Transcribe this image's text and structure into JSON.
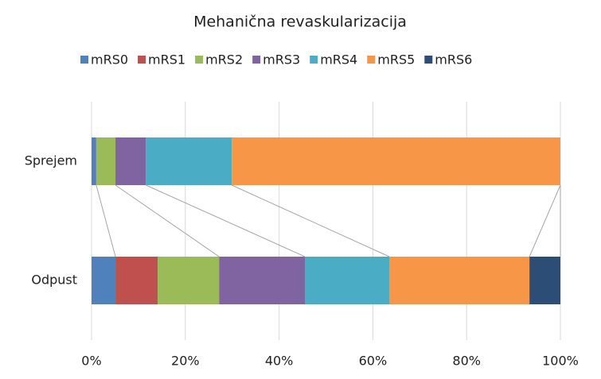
{
  "chart_data": {
    "type": "stacked_barh",
    "title": "Mehanična revaskularizacija",
    "categories": [
      "Sprejem",
      "Odpust"
    ],
    "series": [
      {
        "name": "mRS0",
        "color": "#4f81bd",
        "values": [
          1.0,
          5.1
        ]
      },
      {
        "name": "mRS1",
        "color": "#c0504d",
        "values": [
          0,
          9.0
        ]
      },
      {
        "name": "mRS2",
        "color": "#9bbb59",
        "values": [
          4.1,
          13.1
        ]
      },
      {
        "name": "mRS3",
        "color": "#8064a2",
        "values": [
          6.5,
          18.3
        ]
      },
      {
        "name": "mRS4",
        "color": "#4bacc6",
        "values": [
          18.3,
          18.0
        ]
      },
      {
        "name": "mRS5",
        "color": "#f79646",
        "values": [
          70.1,
          29.9
        ]
      },
      {
        "name": "mRS6",
        "color": "#2c4d75",
        "values": [
          0,
          6.6
        ]
      }
    ],
    "xlim": [
      0,
      100
    ],
    "xticks": [
      {
        "value": 0,
        "label": "0%"
      },
      {
        "value": 20,
        "label": "20%"
      },
      {
        "value": 40,
        "label": "40%"
      },
      {
        "value": 60,
        "label": "60%"
      },
      {
        "value": 80,
        "label": "80%"
      },
      {
        "value": 100,
        "label": "100%"
      }
    ],
    "grid": true,
    "legend": "top"
  }
}
